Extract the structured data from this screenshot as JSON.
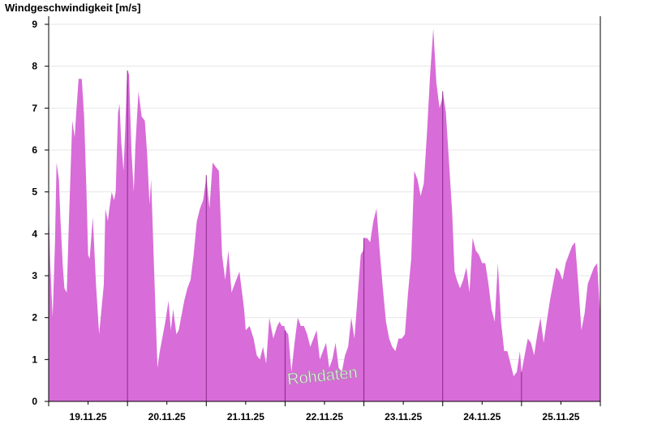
{
  "chart_data": {
    "type": "area",
    "title": "Windgeschwindigkeit [m/s]",
    "watermark": "Rohdaten",
    "ylim": [
      0,
      9
    ],
    "yticks": [
      0,
      1,
      2,
      3,
      4,
      5,
      6,
      7,
      8,
      9
    ],
    "xlim": [
      0,
      7
    ],
    "day_labels": [
      "19.11.25",
      "20.11.25",
      "21.11.25",
      "22.11.25",
      "23.11.25",
      "24.11.25",
      "25.11.25"
    ],
    "grid": true,
    "fill_color": "#d86cd8",
    "line_color": "#8a2a8a",
    "series": [
      {
        "x": [
          0.0,
          0.02,
          0.05,
          0.08,
          0.1,
          0.13,
          0.15,
          0.18,
          0.2,
          0.23,
          0.26,
          0.3,
          0.33,
          0.35,
          0.38,
          0.42,
          0.45,
          0.48,
          0.5,
          0.52,
          0.56,
          0.6,
          0.64,
          0.7,
          0.72,
          0.75,
          0.77,
          0.8,
          0.83,
          0.85,
          0.88,
          0.9,
          0.92,
          0.95,
          0.97,
          0.99,
          1.0,
          1.02,
          1.05,
          1.08,
          1.1,
          1.14,
          1.18,
          1.22,
          1.25,
          1.28,
          1.3,
          1.34,
          1.38,
          1.41,
          1.45,
          1.48,
          1.52,
          1.55,
          1.58,
          1.62,
          1.65,
          1.68,
          1.72,
          1.76,
          1.8,
          1.84,
          1.88,
          1.92,
          1.96,
          1.99,
          2.0,
          2.04,
          2.08,
          2.12,
          2.16,
          2.2,
          2.24,
          2.28,
          2.32,
          2.36,
          2.42,
          2.48,
          2.5,
          2.55,
          2.6,
          2.64,
          2.68,
          2.72,
          2.76,
          2.8,
          2.85,
          2.9,
          2.93,
          2.96,
          2.99,
          3.0,
          3.04,
          3.08,
          3.12,
          3.16,
          3.2,
          3.24,
          3.28,
          3.32,
          3.36,
          3.4,
          3.44,
          3.48,
          3.52,
          3.56,
          3.6,
          3.64,
          3.68,
          3.72,
          3.76,
          3.8,
          3.84,
          3.88,
          3.92,
          3.96,
          3.99,
          4.0,
          4.04,
          4.08,
          4.12,
          4.16,
          4.2,
          4.24,
          4.28,
          4.32,
          4.36,
          4.4,
          4.44,
          4.48,
          4.52,
          4.56,
          4.6,
          4.64,
          4.68,
          4.72,
          4.76,
          4.8,
          4.84,
          4.88,
          4.92,
          4.96,
          4.99,
          5.0,
          5.04,
          5.08,
          5.12,
          5.15,
          5.18,
          5.22,
          5.26,
          5.3,
          5.34,
          5.38,
          5.42,
          5.46,
          5.5,
          5.54,
          5.58,
          5.62,
          5.66,
          5.7,
          5.74,
          5.78,
          5.82,
          5.86,
          5.9,
          5.94,
          5.98,
          6.0,
          6.04,
          6.08,
          6.12,
          6.16,
          6.2,
          6.24,
          6.28,
          6.32,
          6.36,
          6.4,
          6.44,
          6.48,
          6.52,
          6.56,
          6.6,
          6.64,
          6.68,
          6.72,
          6.76,
          6.8,
          6.84,
          6.88,
          6.92,
          6.96,
          7.0
        ],
        "y": [
          4.6,
          3.3,
          2.0,
          3.8,
          5.7,
          5.3,
          4.3,
          3.2,
          2.7,
          2.6,
          4.5,
          6.7,
          6.3,
          6.9,
          7.7,
          7.7,
          6.8,
          5.0,
          3.5,
          3.4,
          4.4,
          2.8,
          1.6,
          2.8,
          4.6,
          4.3,
          4.6,
          5.0,
          4.8,
          5.0,
          6.9,
          7.1,
          6.2,
          5.5,
          6.4,
          7.6,
          7.9,
          7.8,
          6.0,
          5.0,
          6.1,
          7.4,
          6.8,
          6.7,
          5.9,
          4.7,
          5.3,
          3.0,
          0.8,
          1.2,
          1.6,
          1.9,
          2.4,
          1.7,
          2.2,
          1.6,
          1.7,
          2.0,
          2.4,
          2.7,
          2.9,
          3.5,
          4.3,
          4.6,
          4.8,
          5.2,
          5.4,
          4.6,
          5.7,
          5.6,
          5.5,
          3.5,
          2.9,
          3.6,
          2.6,
          2.8,
          3.1,
          2.2,
          1.7,
          1.8,
          1.5,
          1.1,
          1.0,
          1.3,
          0.9,
          2.0,
          1.5,
          1.8,
          1.9,
          1.8,
          1.8,
          1.7,
          1.6,
          0.7,
          1.4,
          2.0,
          1.8,
          1.8,
          1.6,
          1.3,
          1.5,
          1.7,
          1.0,
          1.2,
          1.4,
          0.8,
          1.0,
          1.4,
          0.8,
          0.7,
          1.1,
          1.3,
          2.0,
          1.5,
          2.5,
          3.5,
          3.6,
          3.9,
          3.9,
          3.8,
          4.3,
          4.6,
          3.6,
          2.7,
          1.9,
          1.5,
          1.3,
          1.2,
          1.5,
          1.5,
          1.6,
          2.6,
          3.4,
          5.5,
          5.3,
          4.9,
          5.2,
          6.4,
          7.8,
          8.9,
          7.6,
          7.0,
          7.2,
          7.4,
          6.9,
          5.7,
          4.5,
          3.1,
          2.9,
          2.7,
          2.9,
          3.2,
          2.6,
          3.9,
          3.6,
          3.5,
          3.3,
          3.3,
          2.8,
          2.2,
          1.9,
          3.3,
          1.9,
          1.2,
          1.2,
          0.9,
          0.6,
          0.7,
          1.2,
          0.7,
          1.1,
          1.5,
          1.4,
          1.1,
          1.6,
          2.0,
          1.4,
          1.9,
          2.4,
          2.8,
          3.2,
          3.1,
          2.9,
          3.3,
          3.5,
          3.7,
          3.8,
          2.8,
          1.7,
          2.1,
          2.8,
          3.0,
          3.2,
          3.3,
          2.0
        ]
      }
    ]
  }
}
